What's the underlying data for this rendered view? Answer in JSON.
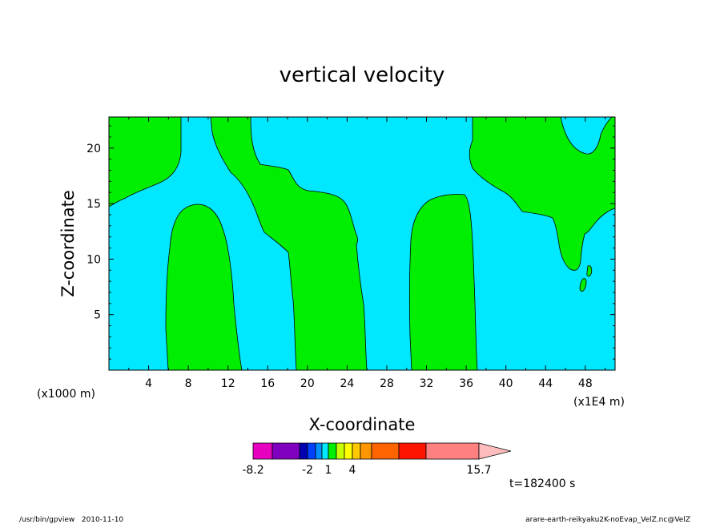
{
  "chart_data": {
    "type": "contour",
    "title": "vertical velocity",
    "xlabel": "X-coordinate",
    "ylabel": "Z-coordinate",
    "x_unit_left": "(x1000 m)",
    "x_unit_right": "(x1E4 m)",
    "x_ticks": [
      4,
      8,
      12,
      16,
      20,
      24,
      28,
      32,
      36,
      40,
      44,
      48
    ],
    "y_ticks": [
      5,
      10,
      15,
      20
    ],
    "xlim": [
      0,
      51
    ],
    "ylim": [
      0,
      22.8
    ],
    "colors": {
      "negative": "#00e8ff",
      "positive": "#00ee00"
    },
    "colorbar": {
      "labels": [
        "-8.2",
        "-2",
        "1",
        "4",
        "15.7"
      ],
      "colors": [
        "#e800c0",
        "#8000c0",
        "#0000b0",
        "#0040ff",
        "#0090ff",
        "#00e8ff",
        "#00ee00",
        "#c8ff00",
        "#ffff00",
        "#ffc800",
        "#ff9600",
        "#ff6400",
        "#ff1400",
        "#ff8080",
        "#ffbcbc"
      ]
    },
    "time_label": "t=182400 s"
  },
  "footer": {
    "left": "/usr/bin/gpview   2010-11-10",
    "right": "arare-earth-reikyaku2K-noEvap_VelZ.nc@VelZ"
  }
}
